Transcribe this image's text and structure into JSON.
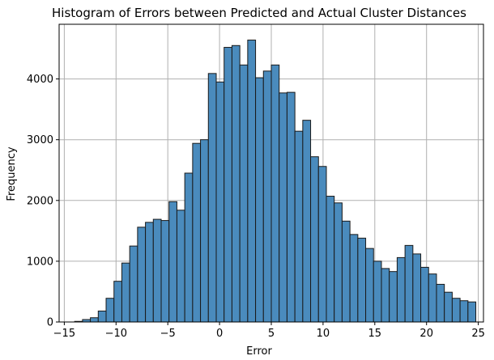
{
  "chart_data": {
    "type": "bar",
    "title": "Histogram of Errors between Predicted and Actual Cluster Distances",
    "xlabel": "Error",
    "ylabel": "Frequency",
    "xlim": [
      -15.5,
      25.5
    ],
    "ylim": [
      0,
      4900
    ],
    "xticks": [
      -15,
      -10,
      -5,
      0,
      5,
      10,
      15,
      20,
      25
    ],
    "xtick_labels": [
      "−15",
      "−10",
      "−5",
      "0",
      "5",
      "10",
      "15",
      "20",
      "25"
    ],
    "yticks": [
      0,
      1000,
      2000,
      3000,
      4000
    ],
    "ytick_labels": [
      "0",
      "1000",
      "2000",
      "3000",
      "4000"
    ],
    "grid": true,
    "bar_color": "#4a8bbd",
    "edge_color": "#1a1a1a",
    "bin_start": -14.0,
    "bin_width": 0.76,
    "values": [
      10,
      40,
      70,
      180,
      390,
      670,
      970,
      1250,
      1560,
      1640,
      1690,
      1670,
      1980,
      1840,
      2450,
      2940,
      3000,
      4090,
      3950,
      4520,
      4550,
      4230,
      4640,
      4020,
      4130,
      4230,
      3770,
      3780,
      3140,
      3320,
      2720,
      2560,
      2070,
      1960,
      1660,
      1440,
      1380,
      1210,
      1000,
      880,
      830,
      1060,
      1260,
      1120,
      900,
      790,
      620,
      490,
      390,
      350,
      330
    ]
  }
}
